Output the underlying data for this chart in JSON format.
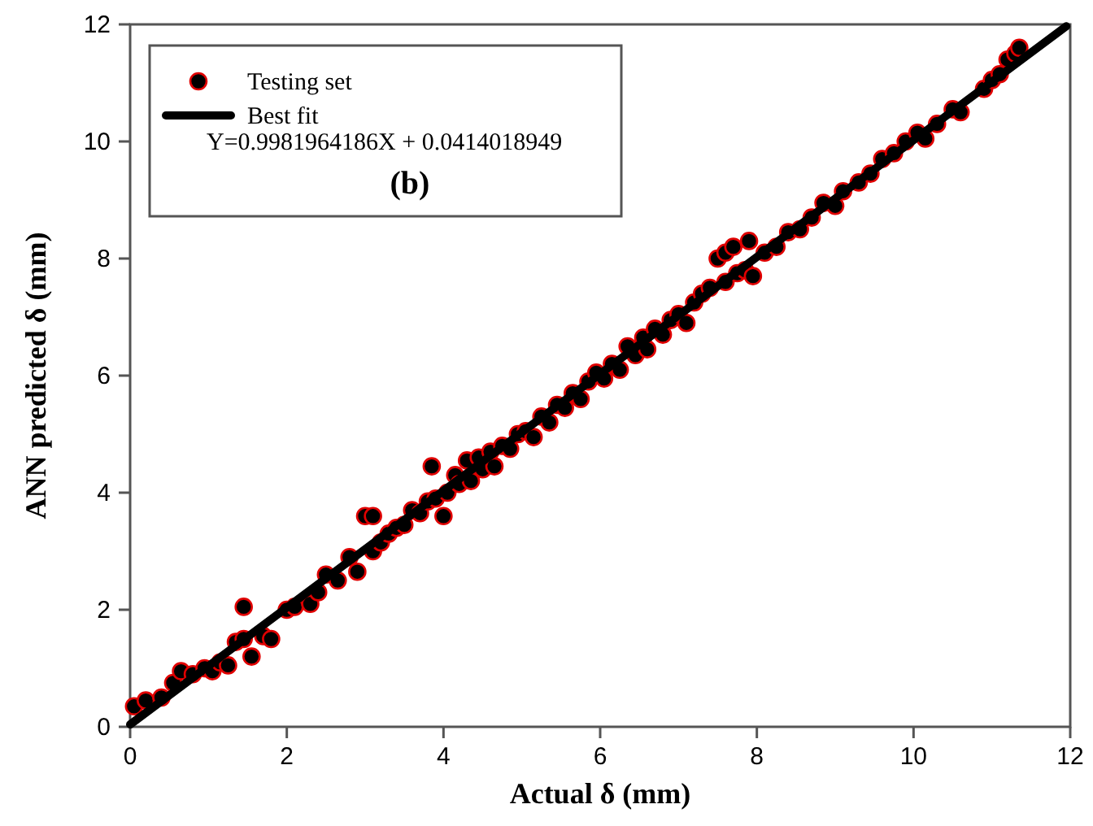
{
  "chart_data": {
    "type": "scatter",
    "xlabel": "Actual δ (mm)",
    "ylabel": "ANN predicted δ (mm)",
    "xlim": [
      0,
      12
    ],
    "ylim": [
      0,
      12
    ],
    "xticks": [
      0,
      2,
      4,
      6,
      8,
      10,
      12
    ],
    "yticks": [
      0,
      2,
      4,
      6,
      8,
      10,
      12
    ],
    "grid": false,
    "legend": "top left",
    "marker": "circle",
    "annotations": [
      "Y=0.9981964186X + 0.0414018949",
      "(b)"
    ],
    "series": [
      {
        "name": "Testing set",
        "color": "#000000",
        "x": [
          0.05,
          0.2,
          0.4,
          0.55,
          0.65,
          0.8,
          0.95,
          1.05,
          1.15,
          1.25,
          1.35,
          1.45,
          1.45,
          1.55,
          1.7,
          1.8,
          2.0,
          2.1,
          2.3,
          2.4,
          2.5,
          2.65,
          2.8,
          2.9,
          3.0,
          3.1,
          3.1,
          3.2,
          3.3,
          3.4,
          3.5,
          3.6,
          3.7,
          3.8,
          3.85,
          3.9,
          4.0,
          4.05,
          4.15,
          4.2,
          4.3,
          4.35,
          4.45,
          4.5,
          4.6,
          4.65,
          4.75,
          4.85,
          4.95,
          5.05,
          5.15,
          5.25,
          5.35,
          5.45,
          5.55,
          5.65,
          5.75,
          5.85,
          5.95,
          6.05,
          6.15,
          6.25,
          6.35,
          6.45,
          6.55,
          6.6,
          6.7,
          6.8,
          6.9,
          7.0,
          7.1,
          7.2,
          7.3,
          7.4,
          7.5,
          7.6,
          7.6,
          7.7,
          7.75,
          7.85,
          7.9,
          7.95,
          8.1,
          8.25,
          8.4,
          8.55,
          8.7,
          8.85,
          9.0,
          9.1,
          9.3,
          9.45,
          9.6,
          9.75,
          9.9,
          10.05,
          10.15,
          10.3,
          10.5,
          10.6,
          10.9,
          11.0,
          11.1,
          11.2,
          11.3,
          11.35
        ],
        "values": [
          0.35,
          0.45,
          0.5,
          0.75,
          0.95,
          0.9,
          1.0,
          0.95,
          1.1,
          1.05,
          1.45,
          2.05,
          1.5,
          1.2,
          1.55,
          1.5,
          2.0,
          2.05,
          2.1,
          2.3,
          2.6,
          2.5,
          2.9,
          2.65,
          3.6,
          3.6,
          3.0,
          3.15,
          3.3,
          3.4,
          3.45,
          3.7,
          3.65,
          3.85,
          4.45,
          3.9,
          3.6,
          4.0,
          4.3,
          4.15,
          4.55,
          4.2,
          4.6,
          4.4,
          4.7,
          4.45,
          4.8,
          4.75,
          5.0,
          5.05,
          4.95,
          5.3,
          5.2,
          5.5,
          5.45,
          5.7,
          5.6,
          5.9,
          6.05,
          5.95,
          6.2,
          6.1,
          6.5,
          6.35,
          6.65,
          6.45,
          6.8,
          6.7,
          6.95,
          7.05,
          6.9,
          7.25,
          7.4,
          7.5,
          8.0,
          8.1,
          7.6,
          8.2,
          7.75,
          7.8,
          8.3,
          7.7,
          8.1,
          8.2,
          8.45,
          8.5,
          8.7,
          8.95,
          8.9,
          9.15,
          9.3,
          9.45,
          9.7,
          9.8,
          10.0,
          10.15,
          10.05,
          10.3,
          10.55,
          10.5,
          10.9,
          11.05,
          11.15,
          11.4,
          11.5,
          11.6
        ]
      },
      {
        "name": "Best fit",
        "color": "#000000",
        "type": "line",
        "marker": "none",
        "line_style": "solid",
        "x": [
          0,
          11.95
        ],
        "values": [
          0.04,
          11.97
        ]
      }
    ]
  }
}
